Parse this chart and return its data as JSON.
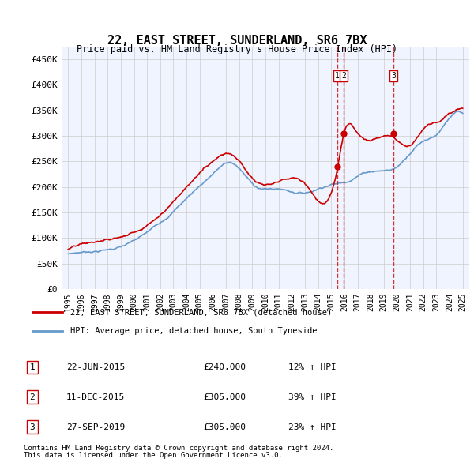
{
  "title": "22, EAST STREET, SUNDERLAND, SR6 7BX",
  "subtitle": "Price paid vs. HM Land Registry's House Price Index (HPI)",
  "legend_line1": "22, EAST STREET, SUNDERLAND, SR6 7BX (detached house)",
  "legend_line2": "HPI: Average price, detached house, South Tyneside",
  "transactions": [
    {
      "label": "1",
      "date": "22-JUN-2015",
      "price": 240000,
      "hpi_pct": "12% ↑ HPI",
      "x_year": 2015.47
    },
    {
      "label": "2",
      "date": "11-DEC-2015",
      "price": 305000,
      "hpi_pct": "39% ↑ HPI",
      "x_year": 2015.94
    },
    {
      "label": "3",
      "date": "27-SEP-2019",
      "price": 305000,
      "hpi_pct": "23% ↑ HPI",
      "x_year": 2019.74
    }
  ],
  "footnote1": "Contains HM Land Registry data © Crown copyright and database right 2024.",
  "footnote2": "This data is licensed under the Open Government Licence v3.0.",
  "xlim": [
    1994.5,
    2025.5
  ],
  "ylim": [
    0,
    475000
  ],
  "yticks": [
    0,
    50000,
    100000,
    150000,
    200000,
    250000,
    300000,
    350000,
    400000,
    450000
  ],
  "ytick_labels": [
    "£0",
    "£50K",
    "£100K",
    "£150K",
    "£200K",
    "£250K",
    "£300K",
    "£350K",
    "£400K",
    "£450K"
  ],
  "xticks": [
    1995,
    1996,
    1997,
    1998,
    1999,
    2000,
    2001,
    2002,
    2003,
    2004,
    2005,
    2006,
    2007,
    2008,
    2009,
    2010,
    2011,
    2012,
    2013,
    2014,
    2015,
    2016,
    2017,
    2018,
    2019,
    2020,
    2021,
    2022,
    2023,
    2024,
    2025
  ],
  "price_color": "#cc0000",
  "hpi_color": "#6699cc",
  "vline_color": "#cc0000",
  "bg_color": "#f0f4ff",
  "plot_bg": "#ffffff",
  "grid_color": "#cccccc"
}
